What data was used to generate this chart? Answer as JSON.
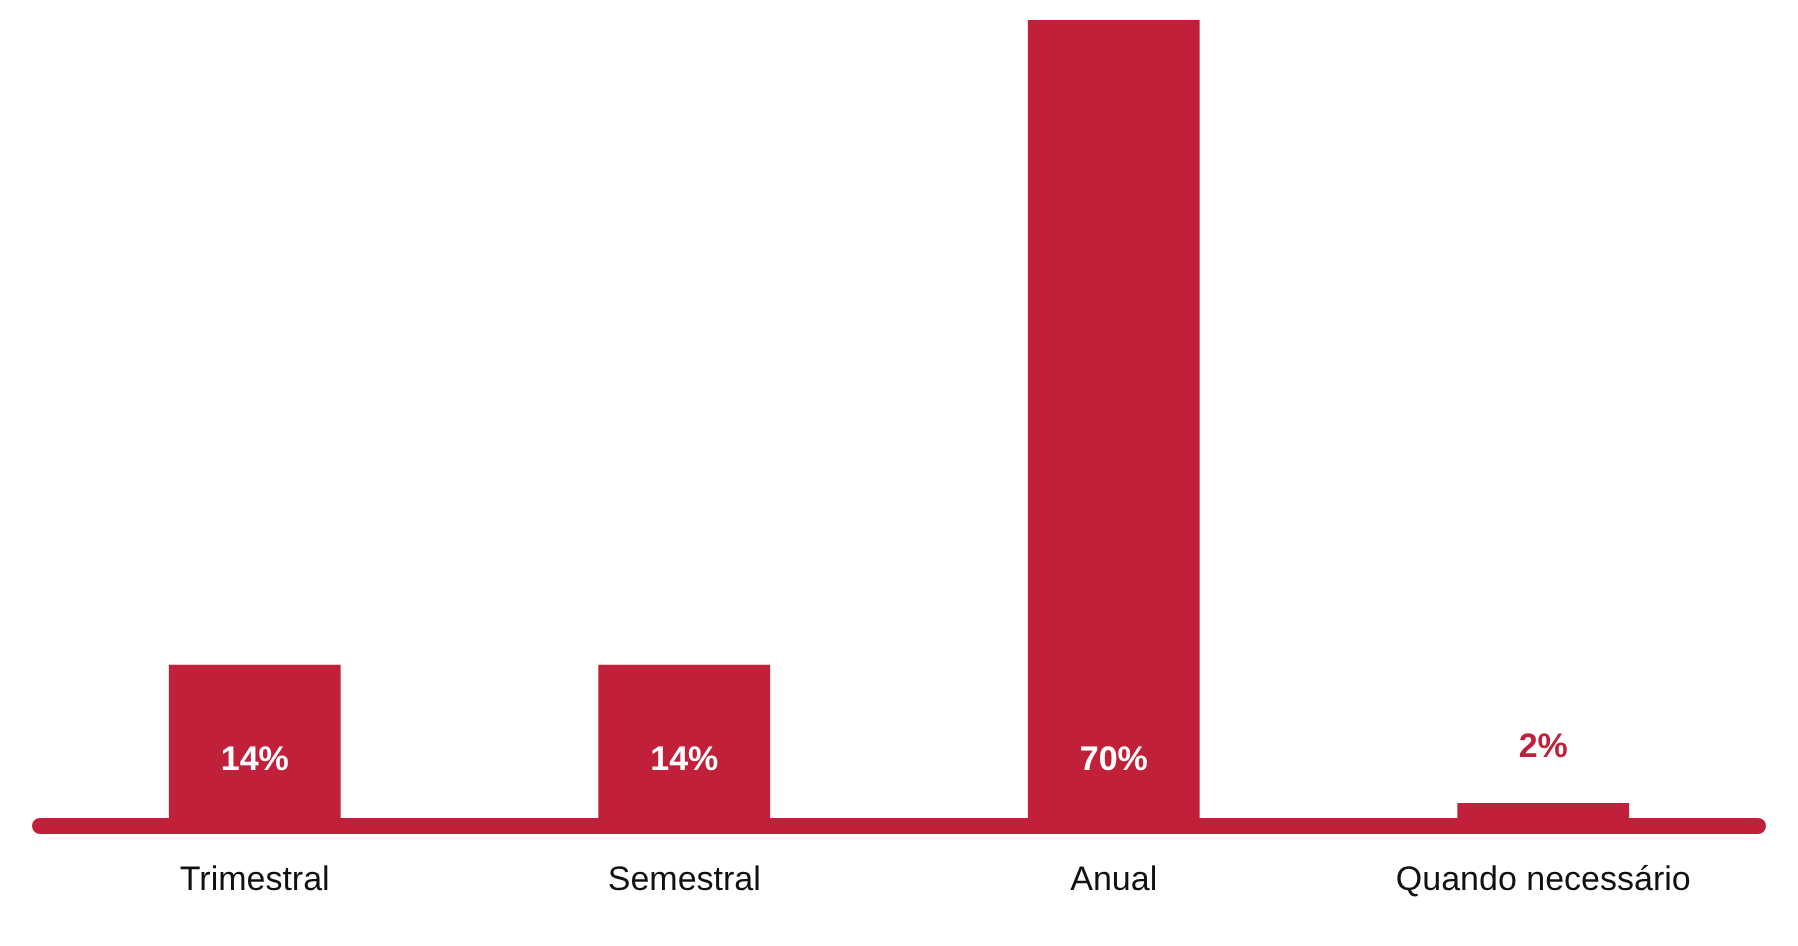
{
  "chart_data": {
    "type": "bar",
    "categories": [
      "Trimestral",
      "Semestral",
      "Anual",
      "Quando necessário"
    ],
    "values": [
      14,
      14,
      70,
      2
    ],
    "value_labels": [
      "14%",
      "14%",
      "70%",
      "2%"
    ],
    "color": "#c0203a",
    "grid": false
  }
}
